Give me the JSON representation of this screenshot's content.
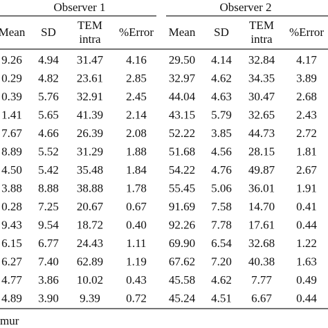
{
  "table": {
    "groups": [
      "Observer 1",
      "Observer 2"
    ],
    "columns": [
      "Mean",
      "SD",
      [
        "TEM",
        "intra"
      ],
      "%Error",
      "Mean",
      "SD",
      [
        "TEM",
        "intra"
      ],
      "%Error"
    ],
    "rows": [
      [
        "9.26",
        "4.94",
        "31.47",
        "4.16",
        "29.50",
        "4.14",
        "32.84",
        "4.17"
      ],
      [
        "0.29",
        "4.82",
        "23.61",
        "2.85",
        "32.97",
        "4.62",
        "34.35",
        "3.89"
      ],
      [
        "0.39",
        "5.76",
        "32.91",
        "2.45",
        "44.04",
        "4.63",
        "30.47",
        "2.68"
      ],
      [
        "1.41",
        "5.65",
        "41.39",
        "2.14",
        "43.15",
        "5.79",
        "32.65",
        "2.43"
      ],
      [
        "7.67",
        "4.66",
        "26.39",
        "2.08",
        "52.22",
        "3.85",
        "44.73",
        "2.72"
      ],
      [
        "8.89",
        "5.52",
        "31.29",
        "1.88",
        "51.68",
        "4.56",
        "28.15",
        "1.81"
      ],
      [
        "4.50",
        "5.42",
        "35.48",
        "1.84",
        "54.22",
        "4.76",
        "49.87",
        "2.67"
      ],
      [
        "3.88",
        "8.88",
        "38.88",
        "1.78",
        "55.45",
        "5.06",
        "36.01",
        "1.91"
      ],
      [
        "0.28",
        "7.25",
        "20.67",
        "0.67",
        "91.69",
        "7.58",
        "14.70",
        "0.41"
      ],
      [
        "9.43",
        "9.54",
        "18.72",
        "0.40",
        "92.26",
        "7.78",
        "17.61",
        "0.44"
      ],
      [
        "6.15",
        "6.77",
        "24.43",
        "1.11",
        "69.90",
        "6.54",
        "32.68",
        "1.22"
      ],
      [
        "6.27",
        "7.40",
        "62.89",
        "1.19",
        "67.62",
        "7.20",
        "40.38",
        "1.63"
      ],
      [
        "4.77",
        "3.86",
        "10.02",
        "0.43",
        "45.58",
        "4.62",
        "7.77",
        "0.49"
      ],
      [
        "4.89",
        "3.90",
        "9.39",
        "0.72",
        "45.24",
        "4.51",
        "6.67",
        "0.44"
      ]
    ],
    "footer": "mur"
  }
}
